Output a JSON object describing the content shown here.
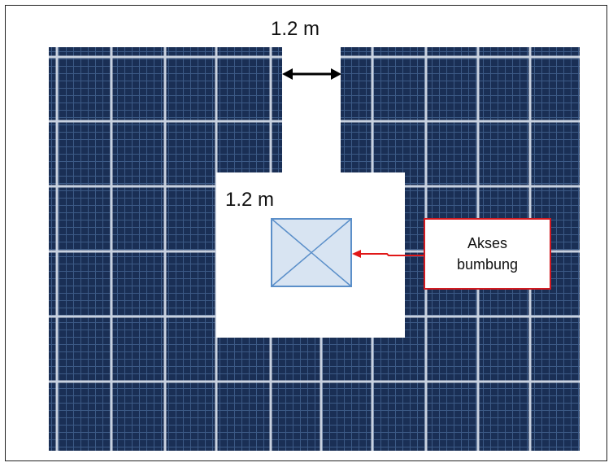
{
  "dimensions": {
    "walkway_width": "1.2 m",
    "clearance_width": "1.2 m"
  },
  "callout": {
    "line1": "Akses",
    "line2": "bumbung"
  },
  "colors": {
    "panel_cell": "#1a2f55",
    "panel_gap": "#c9d2e0",
    "hatch_fill": "#d8e4f2",
    "hatch_stroke": "#5b8fc9",
    "callout_border": "#d21a20",
    "arrow": "#e01818"
  }
}
